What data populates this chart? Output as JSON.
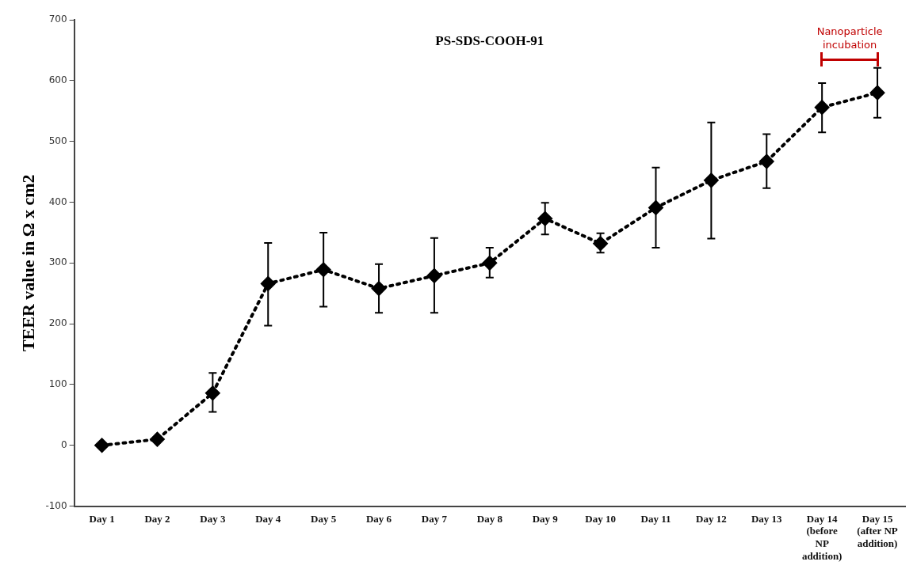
{
  "chart_data": {
    "type": "line",
    "title": "PS-SDS-COOH-91",
    "ylabel": "TEER value in Ω x cm2",
    "categories": [
      "Day 1",
      "Day 2",
      "Day 3",
      "Day 4",
      "Day 5",
      "Day 6",
      "Day 7",
      "Day 8",
      "Day 9",
      "Day 10",
      "Day 11",
      "Day 12",
      "Day 13",
      "Day 14 (before NP addition)",
      "Day 15 (after NP addition)"
    ],
    "series": [
      {
        "color": "#000000",
        "values": [
          0,
          10,
          86,
          266,
          289,
          258,
          279,
          300,
          373,
          332,
          391,
          436,
          467,
          556,
          580
        ],
        "errors": [
          null,
          null,
          [
            55,
            119
          ],
          [
            197,
            333
          ],
          [
            228,
            350
          ],
          [
            218,
            298
          ],
          [
            218,
            341
          ],
          [
            276,
            325
          ],
          [
            347,
            399
          ],
          [
            317,
            349
          ],
          [
            325,
            457
          ],
          [
            340,
            531
          ],
          [
            423,
            512
          ],
          [
            515,
            596
          ],
          [
            539,
            621
          ]
        ]
      }
    ],
    "ylim": [
      -100,
      700
    ],
    "yticks": [
      -100,
      0,
      100,
      200,
      300,
      400,
      500,
      600,
      700
    ],
    "grid": false,
    "legend": false,
    "marker": "diamond",
    "line_style": "dotted",
    "annotations": [
      "Nanoparticle incubation"
    ]
  }
}
